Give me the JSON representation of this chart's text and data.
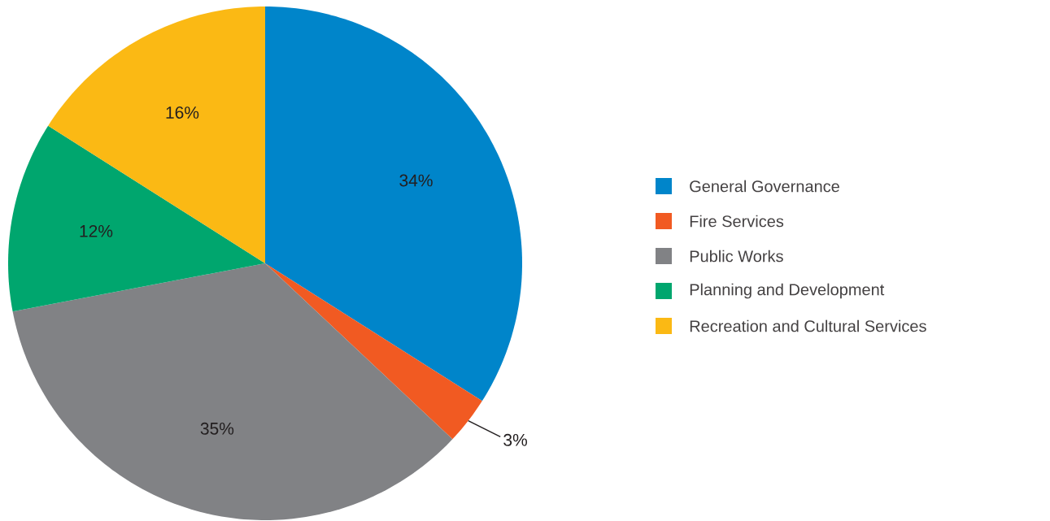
{
  "chart_data": {
    "type": "pie",
    "categories": [
      "General Governance",
      "Fire Services",
      "Public Works",
      "Planning and Development",
      "Recreation and Cultural Services"
    ],
    "values": [
      34,
      3,
      35,
      12,
      16
    ],
    "colors": [
      "#0085ca",
      "#f15a22",
      "#818285",
      "#00a66e",
      "#fbb914"
    ],
    "value_labels": [
      "34%",
      "3%",
      "35%",
      "12%",
      "16%"
    ],
    "legend": "right"
  }
}
